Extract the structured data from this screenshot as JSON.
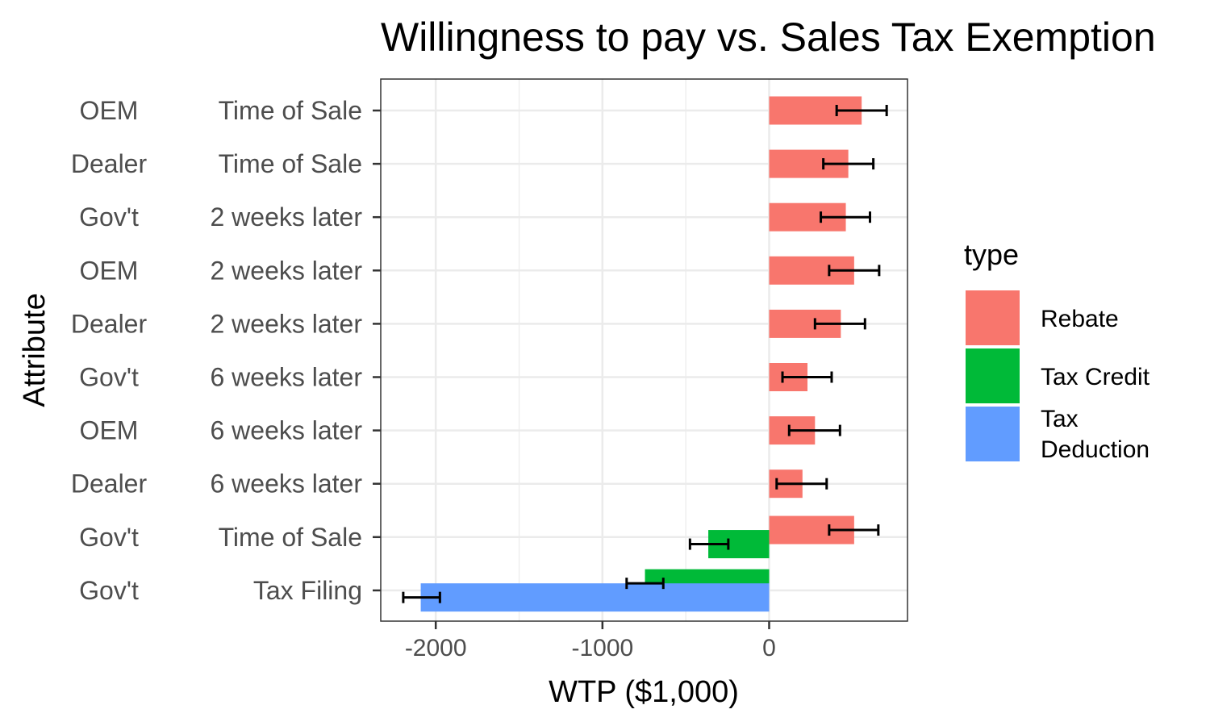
{
  "chart_data": {
    "type": "bar",
    "orientation": "horizontal",
    "title": "Willingness to pay vs. Sales Tax Exemption",
    "xlabel": "WTP ($1,000)",
    "ylabel": "Attribute",
    "xlim": [
      -2330,
      830
    ],
    "x_ticks": [
      -2000,
      -1000,
      0
    ],
    "x_tick_labels": [
      "-2000",
      "-1000",
      "0"
    ],
    "grid": true,
    "legend_position": "right",
    "legend_title": "type",
    "categories": [
      {
        "group": "OEM",
        "timing": "Time of Sale"
      },
      {
        "group": "Dealer",
        "timing": "Time of Sale"
      },
      {
        "group": "Gov't",
        "timing": "2 weeks later"
      },
      {
        "group": "OEM",
        "timing": "2 weeks later"
      },
      {
        "group": "Dealer",
        "timing": "2 weeks later"
      },
      {
        "group": "Gov't",
        "timing": "6 weeks later"
      },
      {
        "group": "OEM",
        "timing": "6 weeks later"
      },
      {
        "group": "Dealer",
        "timing": "6 weeks later"
      },
      {
        "group": "Gov't",
        "timing": "Time of Sale"
      },
      {
        "group": "Gov't",
        "timing": "Tax Filing"
      }
    ],
    "series": [
      {
        "name": "Rebate",
        "color": "#f8766d",
        "values": [
          555,
          475,
          460,
          510,
          430,
          230,
          275,
          200,
          510,
          null
        ],
        "error_low": [
          405,
          325,
          310,
          360,
          275,
          80,
          120,
          45,
          360,
          null
        ],
        "error_high": [
          705,
          625,
          605,
          660,
          575,
          375,
          425,
          345,
          655,
          null
        ]
      },
      {
        "name": "Tax Credit",
        "color": "#00ba38",
        "values": [
          null,
          null,
          null,
          null,
          null,
          null,
          null,
          null,
          -365,
          -745
        ],
        "error_low": [
          null,
          null,
          null,
          null,
          null,
          null,
          null,
          null,
          -475,
          -855
        ],
        "error_high": [
          null,
          null,
          null,
          null,
          null,
          null,
          null,
          null,
          -245,
          -635
        ]
      },
      {
        "name": "Tax Deduction",
        "color": "#619cff",
        "values": [
          null,
          null,
          null,
          null,
          null,
          null,
          null,
          null,
          null,
          -2090
        ],
        "error_low": [
          null,
          null,
          null,
          null,
          null,
          null,
          null,
          null,
          null,
          -2195
        ],
        "error_high": [
          null,
          null,
          null,
          null,
          null,
          null,
          null,
          null,
          null,
          -1975
        ]
      }
    ]
  }
}
